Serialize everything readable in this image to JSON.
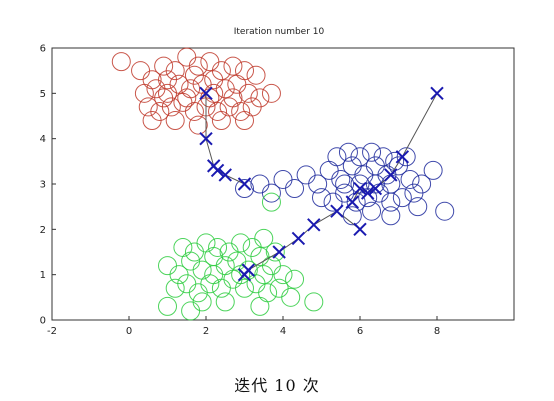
{
  "caption": "迭代 10 次",
  "chart_data": {
    "type": "scatter",
    "title": "Iteration number 10",
    "xlabel": "",
    "ylabel": "",
    "xlim": [
      -2,
      10
    ],
    "ylim": [
      0,
      6
    ],
    "xticks": [
      -2,
      0,
      2,
      4,
      6,
      8
    ],
    "yticks": [
      0,
      1,
      2,
      3,
      4,
      5,
      6
    ],
    "grid": false,
    "colors": {
      "red": "#c0392b",
      "green": "#2ecc40",
      "blue": "#1f2a9c",
      "path": "#555555",
      "centroid": "#1a1ab0"
    },
    "clusters": [
      {
        "color_key": "red",
        "points": [
          [
            -0.2,
            5.7
          ],
          [
            0.3,
            5.5
          ],
          [
            0.6,
            5.3
          ],
          [
            0.9,
            5.6
          ],
          [
            1.2,
            5.5
          ],
          [
            1.5,
            5.8
          ],
          [
            1.8,
            5.6
          ],
          [
            2.1,
            5.7
          ],
          [
            2.4,
            5.5
          ],
          [
            2.7,
            5.6
          ],
          [
            3.0,
            5.5
          ],
          [
            3.3,
            5.4
          ],
          [
            0.4,
            5.0
          ],
          [
            0.7,
            5.1
          ],
          [
            1.0,
            5.0
          ],
          [
            1.3,
            5.2
          ],
          [
            1.6,
            5.1
          ],
          [
            1.9,
            5.2
          ],
          [
            2.2,
            5.0
          ],
          [
            2.5,
            5.1
          ],
          [
            2.8,
            5.2
          ],
          [
            3.1,
            5.0
          ],
          [
            3.4,
            4.9
          ],
          [
            3.7,
            5.0
          ],
          [
            0.5,
            4.7
          ],
          [
            0.8,
            4.6
          ],
          [
            1.1,
            4.7
          ],
          [
            1.4,
            4.8
          ],
          [
            1.7,
            4.6
          ],
          [
            2.0,
            4.7
          ],
          [
            2.3,
            4.6
          ],
          [
            2.6,
            4.7
          ],
          [
            2.9,
            4.6
          ],
          [
            3.2,
            4.7
          ],
          [
            0.6,
            4.4
          ],
          [
            1.2,
            4.4
          ],
          [
            1.8,
            4.3
          ],
          [
            2.4,
            4.4
          ],
          [
            3.0,
            4.4
          ],
          [
            1.5,
            4.9
          ],
          [
            2.1,
            4.9
          ],
          [
            0.9,
            4.9
          ],
          [
            2.7,
            4.9
          ],
          [
            1.0,
            5.3
          ],
          [
            2.2,
            5.3
          ],
          [
            1.7,
            5.4
          ]
        ]
      },
      {
        "color_key": "blue",
        "points": [
          [
            3.0,
            2.9
          ],
          [
            3.4,
            3.0
          ],
          [
            3.7,
            2.8
          ],
          [
            4.0,
            3.1
          ],
          [
            4.3,
            2.9
          ],
          [
            4.6,
            3.2
          ],
          [
            4.9,
            3.0
          ],
          [
            5.2,
            3.3
          ],
          [
            5.5,
            3.1
          ],
          [
            5.8,
            3.4
          ],
          [
            6.1,
            3.2
          ],
          [
            6.4,
            3.4
          ],
          [
            6.7,
            3.2
          ],
          [
            7.0,
            3.4
          ],
          [
            7.3,
            3.1
          ],
          [
            7.6,
            3.0
          ],
          [
            7.9,
            3.3
          ],
          [
            5.0,
            2.7
          ],
          [
            5.3,
            2.6
          ],
          [
            5.6,
            2.8
          ],
          [
            5.9,
            2.6
          ],
          [
            6.2,
            2.7
          ],
          [
            6.5,
            2.8
          ],
          [
            6.8,
            2.6
          ],
          [
            7.1,
            2.7
          ],
          [
            7.4,
            2.8
          ],
          [
            5.4,
            3.6
          ],
          [
            5.7,
            3.7
          ],
          [
            6.0,
            3.6
          ],
          [
            6.3,
            3.7
          ],
          [
            6.6,
            3.6
          ],
          [
            6.9,
            3.5
          ],
          [
            7.2,
            3.6
          ],
          [
            5.8,
            2.3
          ],
          [
            6.3,
            2.4
          ],
          [
            6.8,
            2.3
          ],
          [
            7.5,
            2.5
          ],
          [
            8.2,
            2.4
          ],
          [
            6.0,
            3.0
          ],
          [
            6.4,
            3.0
          ],
          [
            6.8,
            3.0
          ],
          [
            5.6,
            3.0
          ]
        ]
      },
      {
        "color_key": "green",
        "points": [
          [
            1.0,
            1.2
          ],
          [
            1.3,
            1.0
          ],
          [
            1.6,
            1.3
          ],
          [
            1.9,
            1.1
          ],
          [
            2.2,
            1.4
          ],
          [
            2.5,
            1.2
          ],
          [
            2.8,
            1.3
          ],
          [
            3.1,
            1.1
          ],
          [
            3.4,
            1.4
          ],
          [
            3.7,
            1.2
          ],
          [
            4.0,
            1.0
          ],
          [
            4.3,
            0.9
          ],
          [
            1.2,
            0.7
          ],
          [
            1.5,
            0.8
          ],
          [
            1.8,
            0.6
          ],
          [
            2.1,
            0.8
          ],
          [
            2.4,
            0.7
          ],
          [
            2.7,
            0.9
          ],
          [
            3.0,
            0.7
          ],
          [
            3.3,
            0.8
          ],
          [
            3.6,
            0.6
          ],
          [
            3.9,
            0.7
          ],
          [
            4.2,
            0.5
          ],
          [
            1.4,
            1.6
          ],
          [
            1.7,
            1.5
          ],
          [
            2.0,
            1.7
          ],
          [
            2.3,
            1.6
          ],
          [
            2.6,
            1.5
          ],
          [
            2.9,
            1.7
          ],
          [
            3.2,
            1.6
          ],
          [
            3.5,
            1.8
          ],
          [
            3.8,
            1.5
          ],
          [
            1.0,
            0.3
          ],
          [
            1.6,
            0.2
          ],
          [
            2.5,
            0.4
          ],
          [
            3.4,
            0.3
          ],
          [
            4.8,
            0.4
          ],
          [
            2.2,
            1.0
          ],
          [
            2.9,
            1.0
          ],
          [
            3.5,
            1.0
          ],
          [
            1.9,
            0.4
          ],
          [
            3.7,
            2.6
          ]
        ]
      }
    ],
    "centroid_paths": [
      [
        [
          8.0,
          5.0
        ],
        [
          7.1,
          3.6
        ],
        [
          6.8,
          3.2
        ],
        [
          6.4,
          2.9
        ],
        [
          6.2,
          2.8
        ],
        [
          6.0,
          2.9
        ],
        [
          5.8,
          2.6
        ]
      ],
      [
        [
          6.0,
          2.0
        ],
        [
          5.4,
          2.4
        ],
        [
          4.8,
          2.1
        ],
        [
          4.4,
          1.8
        ],
        [
          3.9,
          1.5
        ],
        [
          3.1,
          1.1
        ],
        [
          3.0,
          1.0
        ]
      ],
      [
        [
          3.0,
          3.0
        ],
        [
          2.5,
          3.2
        ],
        [
          2.3,
          3.3
        ],
        [
          2.2,
          3.4
        ],
        [
          2.0,
          4.0
        ],
        [
          2.0,
          5.0
        ]
      ]
    ]
  }
}
